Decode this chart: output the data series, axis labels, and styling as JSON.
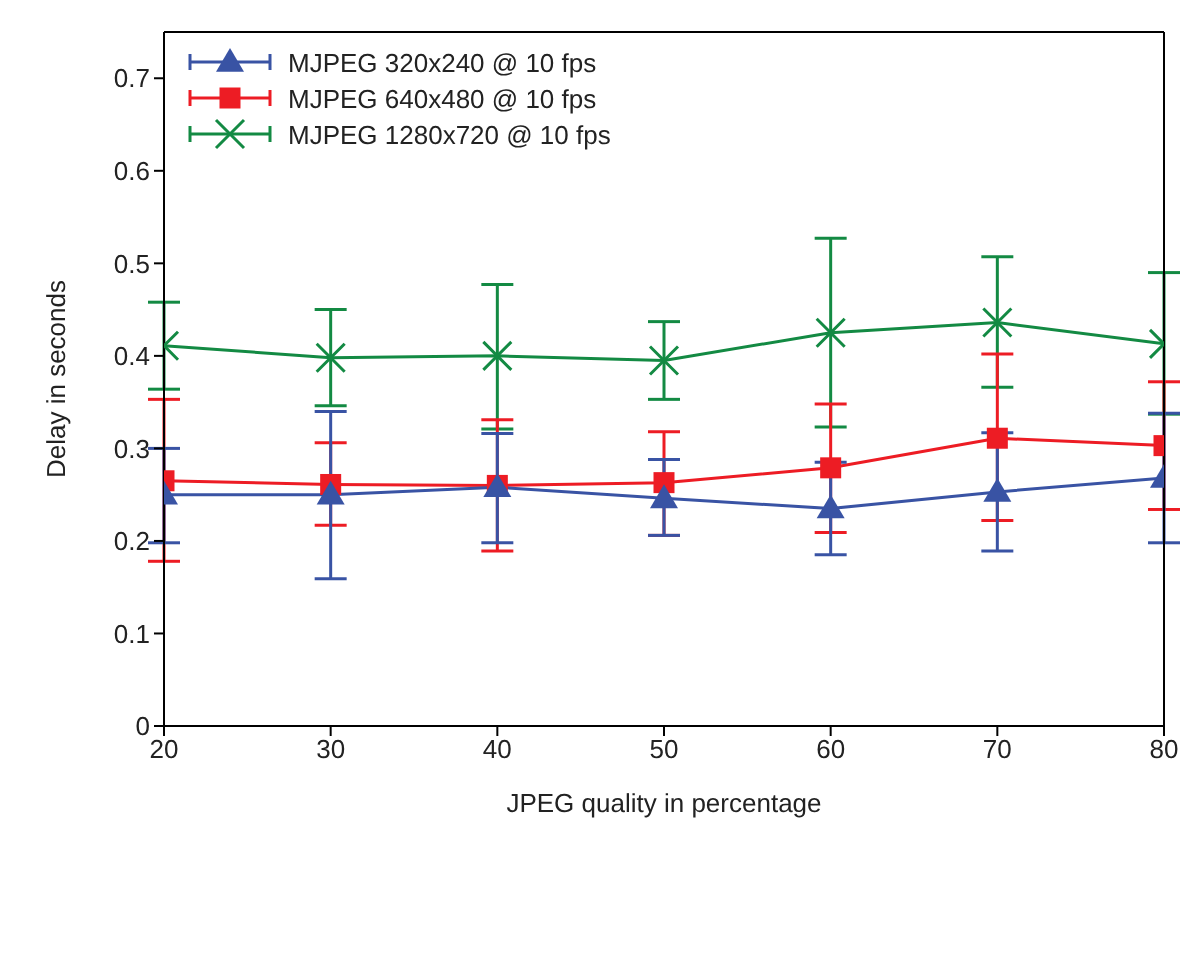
{
  "chart_data": {
    "type": "line",
    "xlabel": "JPEG quality in percentage",
    "ylabel": "Delay in seconds",
    "x": [
      20,
      30,
      40,
      50,
      60,
      70,
      80
    ],
    "xlim": [
      20,
      80
    ],
    "xticks": [
      20,
      30,
      40,
      50,
      60,
      70,
      80
    ],
    "ylim": [
      0,
      0.75
    ],
    "yticks": [
      0,
      0.1,
      0.2,
      0.3,
      0.4,
      0.5,
      0.6,
      0.7
    ],
    "grid": false,
    "legend": "top left",
    "line_style": "solid",
    "series": [
      {
        "name": "MJPEG 320x240 @ 10 fps",
        "color": "#3953a4",
        "marker": "triangle",
        "values": [
          0.25,
          0.25,
          0.258,
          0.246,
          0.235,
          0.253,
          0.268
        ],
        "errors": [
          [
            0.198,
            0.3
          ],
          [
            0.159,
            0.34
          ],
          [
            0.198,
            0.316
          ],
          [
            0.206,
            0.288
          ],
          [
            0.185,
            0.285
          ],
          [
            0.189,
            0.317
          ],
          [
            0.198,
            0.338
          ]
        ]
      },
      {
        "name": "MJPEG 640x480 @ 10 fps",
        "color": "#ed1c24",
        "marker": "square",
        "values": [
          0.265,
          0.261,
          0.26,
          0.263,
          0.279,
          0.311,
          0.303
        ],
        "errors": [
          [
            0.178,
            0.353
          ],
          [
            0.217,
            0.306
          ],
          [
            0.189,
            0.331
          ],
          [
            0.206,
            0.318
          ],
          [
            0.209,
            0.348
          ],
          [
            0.222,
            0.402
          ],
          [
            0.234,
            0.372
          ]
        ]
      },
      {
        "name": "MJPEG 1280x720 @ 10 fps",
        "color": "#138a43",
        "marker": "cross",
        "values": [
          0.411,
          0.398,
          0.4,
          0.395,
          0.425,
          0.436,
          0.413
        ],
        "errors": [
          [
            0.364,
            0.458
          ],
          [
            0.346,
            0.45
          ],
          [
            0.321,
            0.477
          ],
          [
            0.353,
            0.437
          ],
          [
            0.323,
            0.527
          ],
          [
            0.366,
            0.507
          ],
          [
            0.337,
            0.49
          ]
        ]
      }
    ]
  }
}
